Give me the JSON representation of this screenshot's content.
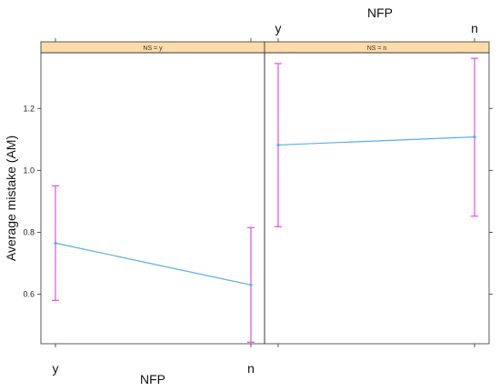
{
  "chart_data": {
    "type": "line",
    "x_axis_title": "NFP",
    "y_axis_title": "Average mistake (AM)",
    "categories": [
      "y",
      "n"
    ],
    "ylim": [
      0.44,
      1.38
    ],
    "yticks": [
      0.6,
      0.8,
      1.0,
      1.2
    ],
    "ytick_labels": [
      "0.6",
      "0.8",
      "1.0",
      "1.2"
    ],
    "grid": false,
    "colors": {
      "line": "#5aaee6",
      "error_bar": "#e44ee4",
      "strip_fill": "#ffdcaa",
      "frame": "#333333"
    },
    "panels": [
      {
        "strip_label": "NS = y",
        "series": [
          {
            "values": [
              0.765,
              0.63
            ],
            "lower": [
              0.58,
              0.445
            ],
            "upper": [
              0.95,
              0.815
            ]
          }
        ]
      },
      {
        "strip_label": "NS = n",
        "series": [
          {
            "values": [
              1.082,
              1.108
            ],
            "lower": [
              0.818,
              0.852
            ],
            "upper": [
              1.345,
              1.362
            ]
          }
        ]
      }
    ]
  }
}
